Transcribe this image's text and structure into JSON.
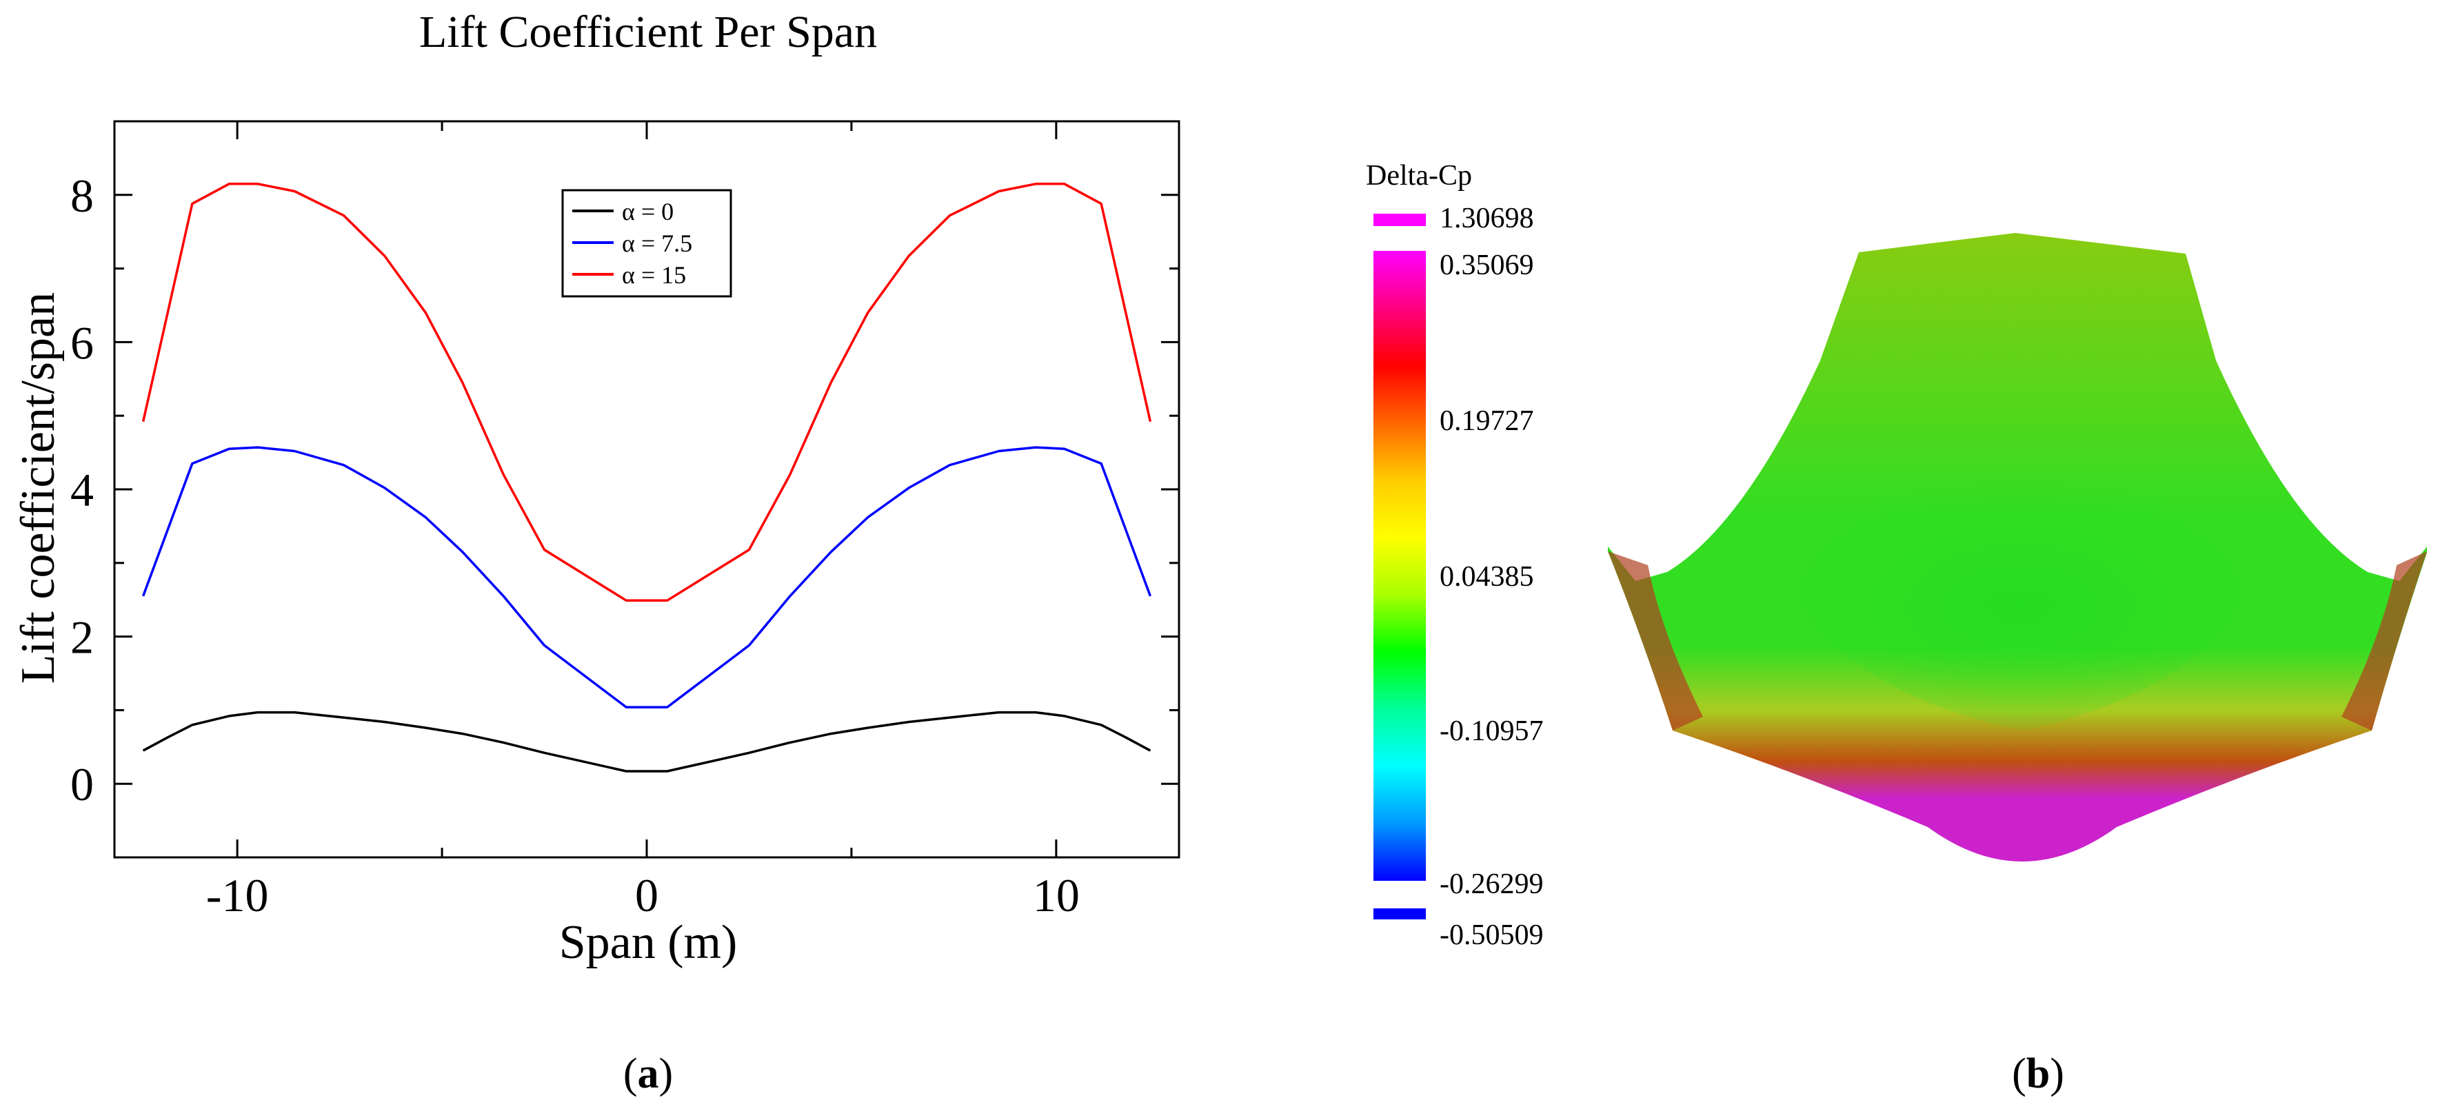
{
  "panel_a": {
    "caption": "(a)",
    "caption_letter": "a",
    "chart_data": {
      "type": "line",
      "title": "Lift Coefficient Per Span",
      "xlabel": "Span (m)",
      "ylabel": "Lift coefficient/span",
      "xlim": [
        -13,
        13
      ],
      "ylim": [
        -1,
        9
      ],
      "xticks": [
        -10,
        0,
        10
      ],
      "xtick_labels": [
        "-10",
        "0",
        "10"
      ],
      "yticks": [
        0,
        2,
        4,
        6,
        8
      ],
      "ytick_labels": [
        "0",
        "2",
        "4",
        "6",
        "8"
      ],
      "grid": false,
      "legend_position": "top-center",
      "x": [
        -12.3,
        -11.7,
        -11.1,
        -10.2,
        -9.5,
        -8.6,
        -7.4,
        -6.4,
        -5.4,
        -4.5,
        -3.5,
        -2.5,
        -0.5,
        0.5,
        2.5,
        3.5,
        4.5,
        5.4,
        6.4,
        7.4,
        8.6,
        9.5,
        10.2,
        11.1,
        11.7,
        12.3
      ],
      "series": [
        {
          "name": "α = 0",
          "color": "#000000",
          "values": [
            0.45,
            0.63,
            0.8,
            0.92,
            0.97,
            0.97,
            0.9,
            0.84,
            0.76,
            0.68,
            0.56,
            0.42,
            0.17,
            0.17,
            0.42,
            0.56,
            0.68,
            0.76,
            0.84,
            0.9,
            0.97,
            0.97,
            0.92,
            0.8,
            0.63,
            0.45
          ]
        },
        {
          "name": "α = 7.5",
          "color": "#0000ff",
          "values": [
            2.55,
            3.45,
            4.35,
            4.55,
            4.57,
            4.52,
            4.33,
            4.02,
            3.62,
            3.15,
            2.55,
            1.88,
            1.04,
            1.04,
            1.88,
            2.55,
            3.15,
            3.62,
            4.02,
            4.33,
            4.52,
            4.57,
            4.55,
            4.35,
            3.45,
            2.55
          ]
        },
        {
          "name": "α = 15",
          "color": "#ff0000",
          "values": [
            4.92,
            6.4,
            7.88,
            8.15,
            8.15,
            8.05,
            7.72,
            7.17,
            6.4,
            5.45,
            4.2,
            3.18,
            2.49,
            2.49,
            3.18,
            4.2,
            5.45,
            6.4,
            7.17,
            7.72,
            8.05,
            8.15,
            8.15,
            7.88,
            6.4,
            4.92
          ]
        }
      ]
    }
  },
  "panel_b": {
    "caption": "(b)",
    "caption_letter": "b",
    "colorbar": {
      "title": "Delta-Cp",
      "over_label": "1.30698",
      "under_label": "-0.50509",
      "over_color": "#ff00ff",
      "under_color": "#0000ff",
      "tick_labels": [
        "0.35069",
        "0.19727",
        "0.04385",
        "-0.10957",
        "-0.26299"
      ],
      "gradient_stops": [
        "#ff00ff",
        "#ff0080",
        "#ff0000",
        "#ff6600",
        "#ffcc00",
        "#ffff00",
        "#aaff00",
        "#00ff00",
        "#00ff99",
        "#00ffff",
        "#0099ff",
        "#0000ff"
      ]
    },
    "surface_colors": {
      "top": "#88cc11",
      "middle": "#33dd22",
      "band": "#c05010",
      "bottom": "#cc22cc"
    }
  }
}
